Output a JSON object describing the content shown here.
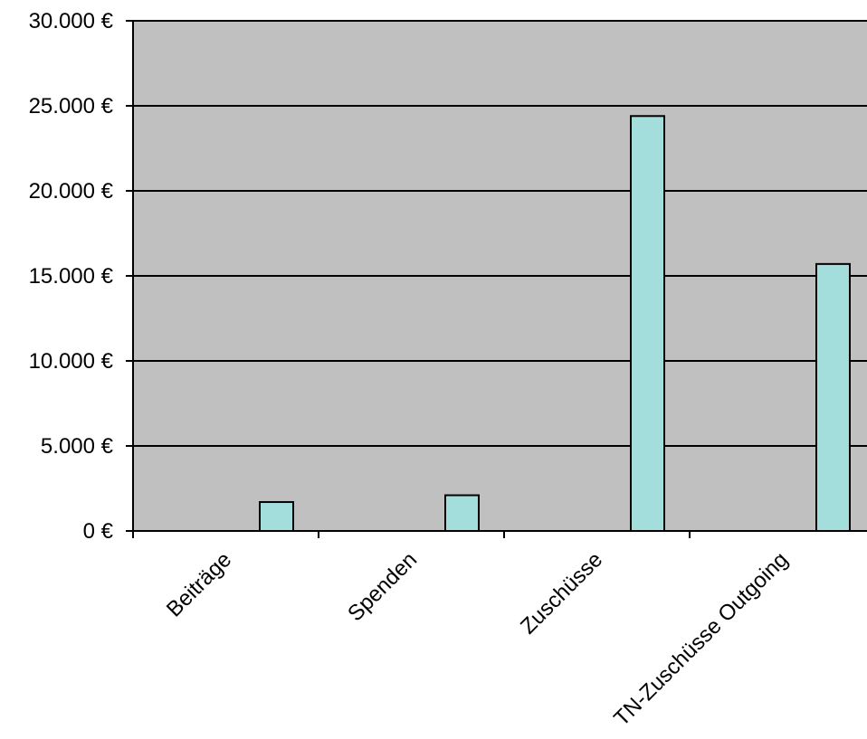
{
  "chart_data": {
    "type": "bar",
    "categories": [
      "Beiträge",
      "Spenden",
      "Zuschüsse",
      "TN-Zuschüsse Outgoing"
    ],
    "values": [
      1700,
      2100,
      24400,
      15700
    ],
    "ylim": [
      0,
      30000
    ],
    "yticks": [
      0,
      5000,
      10000,
      15000,
      20000,
      25000,
      30000
    ],
    "ytick_labels": [
      "0 €",
      "5.000 €",
      "10.000 €",
      "15.000 €",
      "20.000 €",
      "25.000 €",
      "30.000 €"
    ],
    "grid": true,
    "legend": "none",
    "colors": {
      "bar_fill": "#a3dedd",
      "bar_stroke": "#000000",
      "plot_background": "#c0c0c0",
      "gridline": "#000000"
    }
  }
}
